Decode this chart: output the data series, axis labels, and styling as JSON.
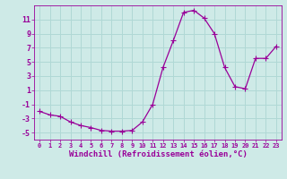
{
  "x": [
    0,
    1,
    2,
    3,
    4,
    5,
    6,
    7,
    8,
    9,
    10,
    11,
    12,
    13,
    14,
    15,
    16,
    17,
    18,
    19,
    20,
    21,
    22,
    23
  ],
  "y": [
    -2.0,
    -2.5,
    -2.7,
    -3.5,
    -4.0,
    -4.3,
    -4.7,
    -4.8,
    -4.8,
    -4.7,
    -3.5,
    -1.0,
    4.2,
    8.0,
    12.0,
    12.3,
    11.2,
    9.0,
    4.2,
    1.5,
    1.2,
    5.5,
    5.5,
    7.2
  ],
  "line_color": "#990099",
  "marker": "+",
  "marker_size": 4,
  "bg_color": "#ceeae7",
  "grid_color": "#b0d8d5",
  "xlabel": "Windchill (Refroidissement éolien,°C)",
  "xlabel_color": "#990099",
  "tick_color": "#990099",
  "spine_color": "#990099",
  "xlim": [
    -0.5,
    23.5
  ],
  "ylim": [
    -6,
    13
  ],
  "yticks": [
    -5,
    -3,
    -1,
    1,
    3,
    5,
    7,
    9,
    11
  ],
  "xticks": [
    0,
    1,
    2,
    3,
    4,
    5,
    6,
    7,
    8,
    9,
    10,
    11,
    12,
    13,
    14,
    15,
    16,
    17,
    18,
    19,
    20,
    21,
    22,
    23
  ]
}
